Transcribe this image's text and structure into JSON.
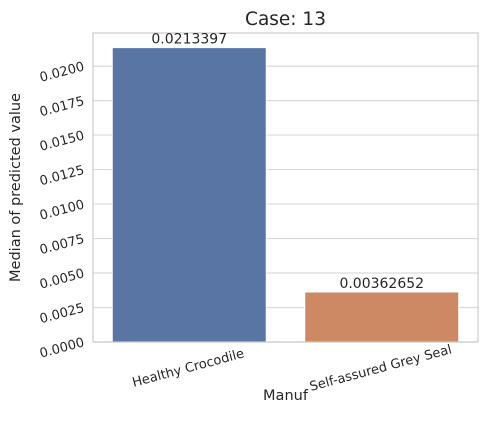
{
  "chart_data": {
    "type": "bar",
    "title": "Case: 13",
    "xlabel": "Manuf",
    "ylabel": "Median of predicted value",
    "categories": [
      "Healthy Crocodile",
      "Self-assured Grey Seal"
    ],
    "values": [
      0.0213397,
      0.00362652
    ],
    "data_labels": [
      "0.0213397",
      "0.00362652"
    ],
    "colors": [
      "#5975a4",
      "#cc8963"
    ],
    "ylim": [
      0,
      0.0224
    ],
    "yticks": [
      0.0,
      0.0025,
      0.005,
      0.0075,
      0.01,
      0.0125,
      0.015,
      0.0175,
      0.02
    ],
    "ytick_labels": [
      "0.0000",
      "0.0025",
      "0.0050",
      "0.0075",
      "0.0100",
      "0.0125",
      "0.0150",
      "0.0175",
      "0.0200"
    ],
    "grid": "horizontal",
    "legend": "none"
  }
}
